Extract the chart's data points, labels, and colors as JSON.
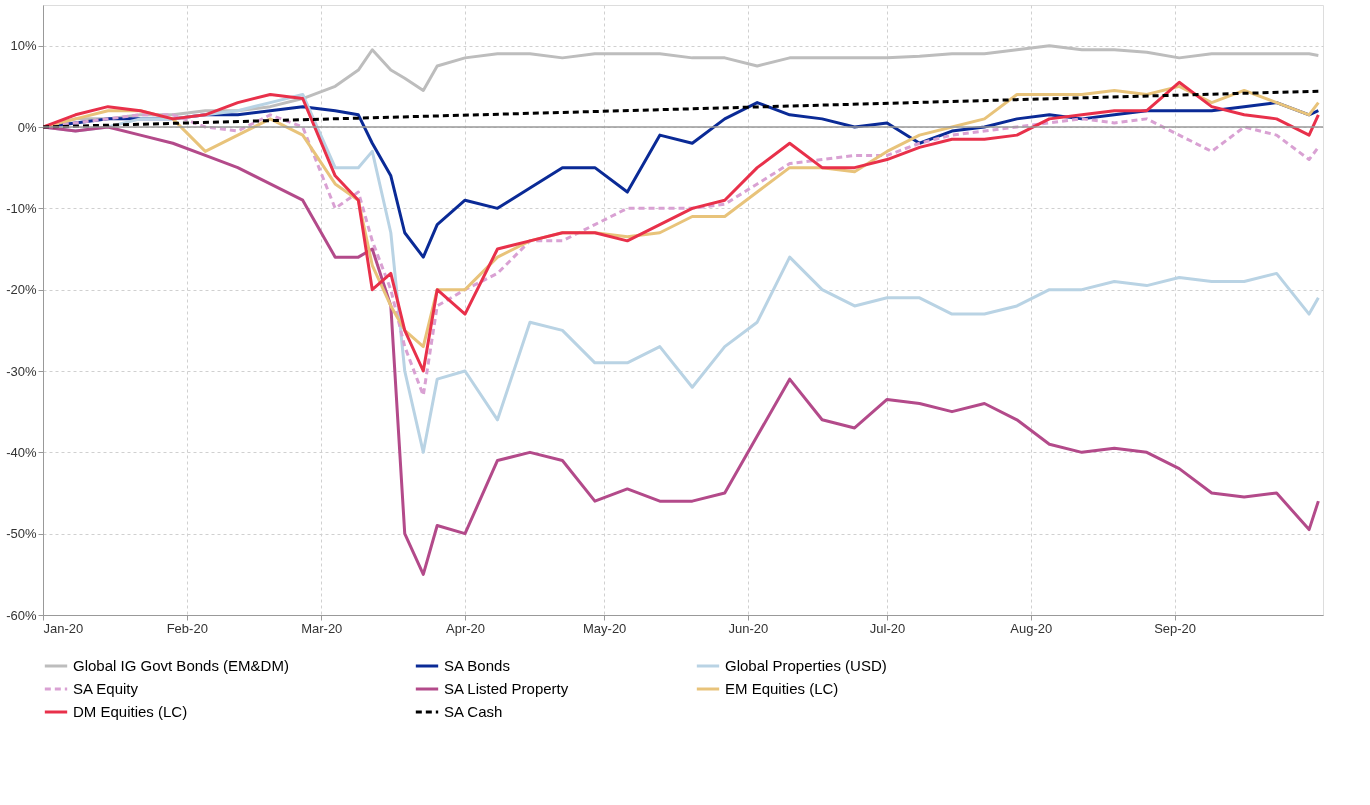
{
  "chart_data": {
    "type": "line",
    "x": [
      "2020-01-01",
      "2020-01-08",
      "2020-01-15",
      "2020-01-22",
      "2020-01-29",
      "2020-02-05",
      "2020-02-12",
      "2020-02-19",
      "2020-02-26",
      "2020-03-04",
      "2020-03-09",
      "2020-03-12",
      "2020-03-16",
      "2020-03-19",
      "2020-03-23",
      "2020-03-26",
      "2020-04-01",
      "2020-04-08",
      "2020-04-15",
      "2020-04-22",
      "2020-04-29",
      "2020-05-06",
      "2020-05-13",
      "2020-05-20",
      "2020-05-27",
      "2020-06-03",
      "2020-06-10",
      "2020-06-17",
      "2020-06-24",
      "2020-07-01",
      "2020-07-08",
      "2020-07-15",
      "2020-07-22",
      "2020-07-29",
      "2020-08-05",
      "2020-08-12",
      "2020-08-19",
      "2020-08-26",
      "2020-09-02",
      "2020-09-09",
      "2020-09-16",
      "2020-09-23",
      "2020-09-30",
      "2020-10-02"
    ],
    "series": [
      {
        "name": "Global IG Govt Bonds (EM&DM)",
        "color": "#bdbdbd",
        "values": [
          0,
          1,
          1,
          1.5,
          1.5,
          2,
          2,
          2.5,
          3.5,
          5,
          7,
          9.5,
          7,
          6,
          4.5,
          7.5,
          8.5,
          9,
          9,
          8.5,
          9,
          9,
          9,
          8.5,
          8.5,
          7.5,
          8.5,
          8.5,
          8.5,
          8.5,
          8.7,
          9,
          9,
          9.5,
          10,
          9.5,
          9.5,
          9.2,
          8.5,
          9,
          9,
          9,
          9,
          8.8
        ]
      },
      {
        "name": "SA Bonds",
        "color": "#0a2a96",
        "values": [
          0,
          0.5,
          1,
          1,
          1,
          1.5,
          1.5,
          2,
          2.5,
          2,
          1.5,
          -2,
          -6,
          -13,
          -16,
          -12,
          -9,
          -10,
          -7.5,
          -5,
          -5,
          -8,
          -1,
          -2,
          1,
          3,
          1.5,
          1,
          0,
          0.5,
          -2,
          -0.5,
          0,
          1,
          1.5,
          1,
          1.5,
          2,
          2,
          2,
          2.5,
          3,
          1.5,
          2
        ]
      },
      {
        "name": "Global Properties (USD)",
        "color": "#b9d3e4",
        "values": [
          0,
          -0.5,
          0,
          1,
          1,
          1.5,
          2,
          3,
          4,
          -5,
          -5,
          -3,
          -13,
          -30,
          -40,
          -31,
          -30,
          -36,
          -24,
          -25,
          -29,
          -29,
          -27,
          -32,
          -27,
          -24,
          -16,
          -20,
          -22,
          -21,
          -21,
          -23,
          -23,
          -22,
          -20,
          -20,
          -19,
          -19.5,
          -18.5,
          -19,
          -19,
          -18,
          -23,
          -21
        ]
      },
      {
        "name": "SA Equity",
        "color": "#d9a1d3",
        "line_style": "dashed",
        "values": [
          0,
          0.5,
          1,
          1.5,
          1.5,
          0,
          -0.5,
          1.5,
          0,
          -10,
          -8,
          -14,
          -20,
          -27,
          -33,
          -22,
          -20,
          -18,
          -14,
          -14,
          -12,
          -10,
          -10,
          -10,
          -9.5,
          -7,
          -4.5,
          -4,
          -3.5,
          -3.5,
          -2,
          -1,
          -0.5,
          0,
          0.5,
          1,
          0.5,
          1,
          -1,
          -3,
          0,
          -1,
          -4,
          -2.5
        ]
      },
      {
        "name": "SA Listed Property",
        "color": "#b34a8a",
        "values": [
          0,
          -0.5,
          0,
          -1,
          -2,
          -3.5,
          -5,
          -7,
          -9,
          -16,
          -16,
          -15,
          -22,
          -50,
          -55,
          -49,
          -50,
          -41,
          -40,
          -41,
          -46,
          -44.5,
          -46,
          -46,
          -45,
          -38,
          -31,
          -36,
          -37,
          -33.5,
          -34,
          -35,
          -34,
          -36,
          -39,
          -40,
          -39.5,
          -40,
          -42,
          -45,
          -45.5,
          -45,
          -49.5,
          -46
        ]
      },
      {
        "name": "EM Equities (LC)",
        "color": "#e8c37a",
        "values": [
          0,
          1,
          2,
          2,
          1,
          -3,
          -1,
          1,
          -1,
          -7,
          -9,
          -17,
          -22,
          -25,
          -27,
          -20,
          -20,
          -16,
          -14,
          -13,
          -13,
          -13.5,
          -13,
          -11,
          -11,
          -8,
          -5,
          -5,
          -5.5,
          -3,
          -1,
          0,
          1,
          4,
          4,
          4,
          4.5,
          4,
          5,
          3,
          4.5,
          3,
          1.5,
          3
        ]
      },
      {
        "name": "DM Equities (LC)",
        "color": "#e8304a",
        "values": [
          0,
          1.5,
          2.5,
          2,
          1,
          1.5,
          3,
          4,
          3.5,
          -6,
          -9,
          -20,
          -18,
          -25,
          -30,
          -20,
          -23,
          -15,
          -14,
          -13,
          -13,
          -14,
          -12,
          -10,
          -9,
          -5,
          -2,
          -5,
          -5,
          -4,
          -2.5,
          -1.5,
          -1.5,
          -1,
          1,
          1.5,
          2,
          2,
          5.5,
          2.5,
          1.5,
          1,
          -1,
          1.5
        ]
      },
      {
        "name": "SA Cash",
        "color": "#000000",
        "line_style": "dashed",
        "x": [
          "2020-01-01",
          "2020-10-02"
        ],
        "values": [
          0,
          4.4
        ]
      }
    ],
    "xlim": [
      "2020-01-01",
      "2020-10-03"
    ],
    "xticks": [
      {
        "value": "2020-01-01",
        "label": "Jan-20"
      },
      {
        "value": "2020-02-01",
        "label": "Feb-20"
      },
      {
        "value": "2020-03-01",
        "label": "Mar-20"
      },
      {
        "value": "2020-04-01",
        "label": "Apr-20"
      },
      {
        "value": "2020-05-01",
        "label": "May-20"
      },
      {
        "value": "2020-06-01",
        "label": "Jun-20"
      },
      {
        "value": "2020-07-01",
        "label": "Jul-20"
      },
      {
        "value": "2020-08-01",
        "label": "Aug-20"
      },
      {
        "value": "2020-09-01",
        "label": "Sep-20"
      }
    ],
    "ylim": [
      -60,
      15
    ],
    "yticks": [
      {
        "value": -60,
        "label": "-60%"
      },
      {
        "value": -50,
        "label": "-50%"
      },
      {
        "value": -40,
        "label": "-40%"
      },
      {
        "value": -30,
        "label": "-30%"
      },
      {
        "value": -20,
        "label": "-20%"
      },
      {
        "value": -10,
        "label": "-10%"
      },
      {
        "value": 0,
        "label": "0%"
      },
      {
        "value": 10,
        "label": "10%"
      }
    ],
    "ref_lines": [
      {
        "axis": "y",
        "value": 0,
        "color": "#999999"
      }
    ],
    "grid": true,
    "legend": "bottom",
    "marker": "none",
    "line_style": "solid"
  }
}
